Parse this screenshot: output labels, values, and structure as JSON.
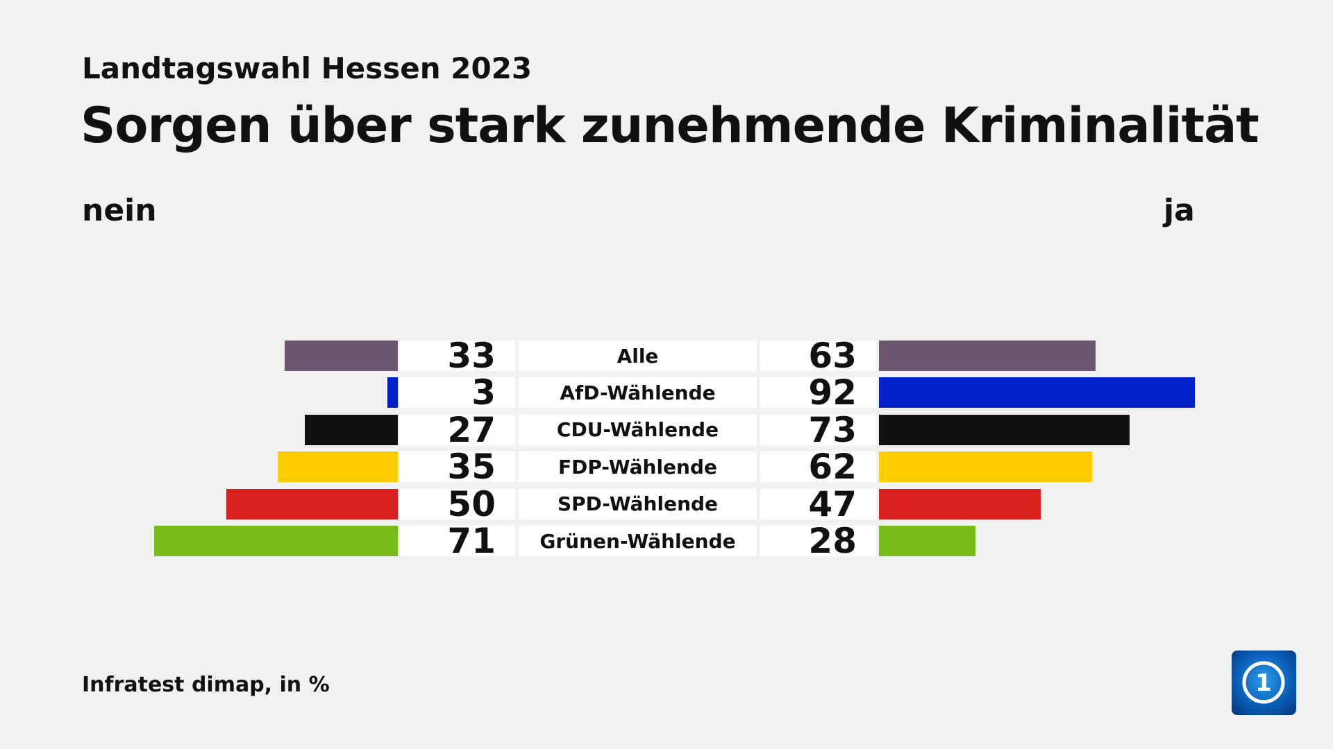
{
  "header": {
    "subtitle": "Landtagswahl Hessen 2023",
    "title": "Sorgen über stark zunehmende Kriminalität"
  },
  "footer": {
    "source": "Infratest dimap, in %",
    "logo": "ARD tagesschau logo (1)"
  },
  "chart_data": {
    "type": "bar",
    "layout": "diverging horizontal bar",
    "left_label": "nein",
    "right_label": "ja",
    "categories": [
      "Alle",
      "AfD-Wählende",
      "CDU-Wählende",
      "FDP-Wählende",
      "SPD-Wählende",
      "Grünen-Wählende"
    ],
    "series": [
      {
        "name": "nein",
        "values": [
          33,
          3,
          27,
          35,
          50,
          71
        ]
      },
      {
        "name": "ja",
        "values": [
          63,
          92,
          73,
          62,
          47,
          28
        ]
      }
    ],
    "colors": [
      "#6a566f",
      "#0021c8",
      "#111111",
      "#ffcc00",
      "#d8201e",
      "#78bc1b"
    ]
  }
}
